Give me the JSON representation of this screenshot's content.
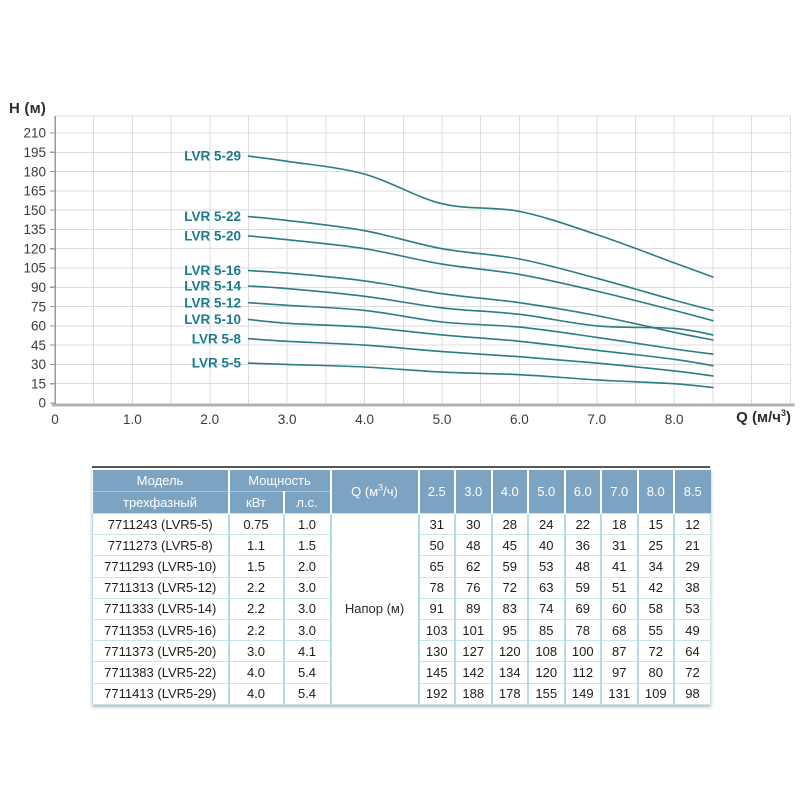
{
  "chart": {
    "y_axis_title": "H (м)",
    "x_axis_title_prefix": "Q (м/ч",
    "x_axis_title_sup": "3",
    "x_axis_title_suffix": ")"
  },
  "chart_data": {
    "type": "line",
    "title": "",
    "xlabel": "Q (м/ч³)",
    "ylabel": "H (м)",
    "x": [
      2.5,
      3.0,
      4.0,
      5.0,
      6.0,
      7.0,
      8.0,
      8.5
    ],
    "series": [
      {
        "name": "LVR 5-5",
        "values": [
          31,
          30,
          28,
          24,
          22,
          18,
          15,
          12
        ]
      },
      {
        "name": "LVR 5-8",
        "values": [
          50,
          48,
          45,
          40,
          36,
          31,
          25,
          21
        ]
      },
      {
        "name": "LVR 5-10",
        "values": [
          65,
          62,
          59,
          53,
          48,
          41,
          34,
          29
        ]
      },
      {
        "name": "LVR 5-12",
        "values": [
          78,
          76,
          72,
          63,
          59,
          51,
          42,
          38
        ]
      },
      {
        "name": "LVR 5-14",
        "values": [
          91,
          89,
          83,
          74,
          69,
          60,
          58,
          53
        ]
      },
      {
        "name": "LVR 5-16",
        "values": [
          103,
          101,
          95,
          85,
          78,
          68,
          55,
          49
        ]
      },
      {
        "name": "LVR 5-20",
        "values": [
          130,
          127,
          120,
          108,
          100,
          87,
          72,
          64
        ]
      },
      {
        "name": "LVR 5-22",
        "values": [
          145,
          142,
          134,
          120,
          112,
          97,
          80,
          72
        ]
      },
      {
        "name": "LVR 5-29",
        "values": [
          192,
          188,
          178,
          155,
          149,
          131,
          109,
          98
        ]
      }
    ],
    "xlim": [
      0,
      9.5
    ],
    "ylim": [
      0,
      223
    ],
    "x_tick_labels": [
      "0",
      "1.0",
      "2.0",
      "3.0",
      "4.0",
      "5.0",
      "6.0",
      "7.0",
      "8.0"
    ],
    "x_tick_values": [
      0,
      1,
      2,
      3,
      4,
      5,
      6,
      7,
      8
    ],
    "y_tick_min": 0,
    "y_tick_max": 210,
    "y_tick_step": 15,
    "grid": true,
    "legend_position": "curve-start-labels"
  },
  "table": {
    "header": {
      "model": "Модель",
      "model_sub": "трехфазный",
      "power": "Мощность",
      "power_kw": "кВт",
      "power_hp": "л.с.",
      "q_prefix": "Q (м",
      "q_sup": "3",
      "q_suffix": "/ч)",
      "flows": [
        "2.5",
        "3.0",
        "4.0",
        "5.0",
        "6.0",
        "7.0",
        "8.0",
        "8.5"
      ]
    },
    "napor_label": "Напор (м)",
    "rows": [
      {
        "model": "7711243 (LVR5-5)",
        "kw": "0.75",
        "hp": "1.0",
        "values": [
          31,
          30,
          28,
          24,
          22,
          18,
          15,
          12
        ]
      },
      {
        "model": "7711273 (LVR5-8)",
        "kw": "1.1",
        "hp": "1.5",
        "values": [
          50,
          48,
          45,
          40,
          36,
          31,
          25,
          21
        ]
      },
      {
        "model": "7711293 (LVR5-10)",
        "kw": "1.5",
        "hp": "2.0",
        "values": [
          65,
          62,
          59,
          53,
          48,
          41,
          34,
          29
        ]
      },
      {
        "model": "7711313 (LVR5-12)",
        "kw": "2.2",
        "hp": "3.0",
        "values": [
          78,
          76,
          72,
          63,
          59,
          51,
          42,
          38
        ]
      },
      {
        "model": "7711333 (LVR5-14)",
        "kw": "2.2",
        "hp": "3.0",
        "values": [
          91,
          89,
          83,
          74,
          69,
          60,
          58,
          53
        ]
      },
      {
        "model": "7711353 (LVR5-16)",
        "kw": "2.2",
        "hp": "3.0",
        "values": [
          103,
          101,
          95,
          85,
          78,
          68,
          55,
          49
        ]
      },
      {
        "model": "7711373 (LVR5-20)",
        "kw": "3.0",
        "hp": "4.1",
        "values": [
          130,
          127,
          120,
          108,
          100,
          87,
          72,
          64
        ]
      },
      {
        "model": "7711383 (LVR5-22)",
        "kw": "4.0",
        "hp": "5.4",
        "values": [
          145,
          142,
          134,
          120,
          112,
          97,
          80,
          72
        ]
      },
      {
        "model": "7711413 (LVR5-29)",
        "kw": "4.0",
        "hp": "5.4",
        "values": [
          192,
          188,
          178,
          155,
          149,
          131,
          109,
          98
        ]
      }
    ]
  },
  "colors": {
    "curve": "#2b7c85",
    "curve_label": "#1a7b90",
    "grid": "#dcdcdc",
    "axis": "#9a9a9a",
    "x_axis": "#b0b0b0",
    "tick_text": "#3b3b3b",
    "axis_title": "#2d2d2d",
    "table_header_bg": "#7ca4c2",
    "table_border": "#b5dce4",
    "table_top_line": "#575757"
  }
}
